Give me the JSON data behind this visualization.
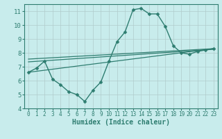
{
  "xlabel": "Humidex (Indice chaleur)",
  "ylabel": "",
  "bg_color": "#c8ecec",
  "grid_color": "#b0cccc",
  "line_color": "#2e7d70",
  "xlim": [
    -0.5,
    23.5
  ],
  "ylim": [
    4,
    11.5
  ],
  "yticks": [
    4,
    5,
    6,
    7,
    8,
    9,
    10,
    11
  ],
  "xticks": [
    0,
    1,
    2,
    3,
    4,
    5,
    6,
    7,
    8,
    9,
    10,
    11,
    12,
    13,
    14,
    15,
    16,
    17,
    18,
    19,
    20,
    21,
    22,
    23
  ],
  "series": [
    {
      "x": [
        0,
        1,
        2,
        3,
        4,
        5,
        6,
        7,
        8,
        9,
        10,
        11,
        12,
        13,
        14,
        15,
        16,
        17,
        18,
        19,
        20,
        21,
        22,
        23
      ],
      "y": [
        6.6,
        6.9,
        7.4,
        6.1,
        5.7,
        5.2,
        5.0,
        4.5,
        5.3,
        5.9,
        7.4,
        8.8,
        9.5,
        11.1,
        11.2,
        10.8,
        10.8,
        9.9,
        8.5,
        8.0,
        7.9,
        8.1,
        8.2,
        8.3
      ],
      "marker": "D",
      "markersize": 2.5,
      "linewidth": 1.0
    },
    {
      "x": [
        0,
        23
      ],
      "y": [
        6.6,
        8.3
      ],
      "marker": null,
      "markersize": 0,
      "linewidth": 0.9
    },
    {
      "x": [
        0,
        23
      ],
      "y": [
        7.35,
        8.25
      ],
      "marker": null,
      "markersize": 0,
      "linewidth": 0.9
    },
    {
      "x": [
        0,
        23
      ],
      "y": [
        7.55,
        8.3
      ],
      "marker": null,
      "markersize": 0,
      "linewidth": 0.9
    }
  ]
}
